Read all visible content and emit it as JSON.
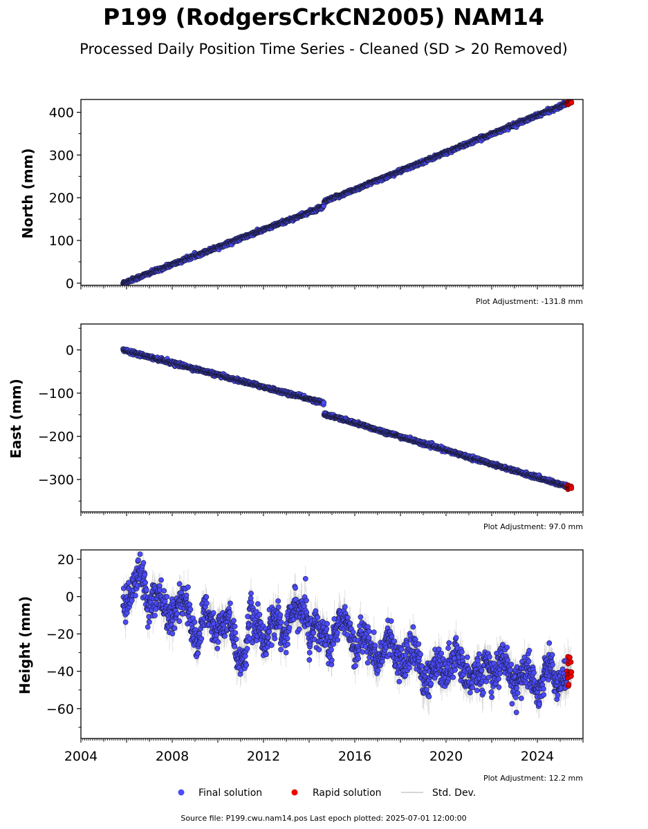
{
  "title": "P199 (RodgersCrkCN2005) NAM14",
  "subtitle": "Processed Daily Position Time Series - Cleaned (SD > 20 Removed)",
  "footer": "Source file: P199.cwu.nam14.pos  Last epoch plotted: 2025-07-01 12:00:00",
  "legend": {
    "items": [
      {
        "label": "Final solution",
        "color": "#4b4bff"
      },
      {
        "label": "Rapid solution",
        "color": "#ee0000"
      },
      {
        "label": "Std. Dev.",
        "color": "#c8c8c8"
      }
    ]
  },
  "colors": {
    "final": "#4b4bff",
    "rapid": "#ee0000",
    "stddev": "#b8b8b8",
    "edge": "#1a1a33"
  },
  "chart_data": [
    {
      "type": "scatter",
      "panel": "north",
      "ylabel": "North (mm)",
      "adjustment": "Plot Adjustment: -131.8 mm",
      "xlim": [
        2004,
        2026
      ],
      "ylim": [
        -5,
        430
      ],
      "yticks": [
        0,
        100,
        200,
        300,
        400
      ],
      "start": 2005.85,
      "break": 2014.65,
      "end": 2025.5,
      "rapid_start": 2025.3,
      "series": [
        {
          "segment": "before-break",
          "x": [
            2005.85,
            2014.6
          ],
          "y": [
            0,
            178
          ]
        },
        {
          "segment": "after-break",
          "x": [
            2014.65,
            2025.5
          ],
          "y": [
            190,
            425
          ]
        }
      ],
      "noise": 2.0,
      "sd": 1.5
    },
    {
      "type": "scatter",
      "panel": "east",
      "ylabel": "East (mm)",
      "adjustment": "Plot Adjustment: 97.0 mm",
      "xlim": [
        2004,
        2026
      ],
      "ylim": [
        -375,
        60
      ],
      "yticks": [
        0,
        -100,
        -200,
        -300
      ],
      "start": 2005.85,
      "break": 2014.65,
      "end": 2025.5,
      "rapid_start": 2025.3,
      "series": [
        {
          "segment": "before-break",
          "x": [
            2005.85,
            2014.6
          ],
          "y": [
            0,
            -122
          ]
        },
        {
          "segment": "after-break",
          "x": [
            2014.65,
            2025.5
          ],
          "y": [
            -148,
            -319
          ]
        }
      ],
      "noise": 2.0,
      "sd": 1.5
    },
    {
      "type": "scatter",
      "panel": "height",
      "ylabel": "Height (mm)",
      "adjustment": "Plot Adjustment: 12.2 mm",
      "xlim": [
        2004,
        2026
      ],
      "xticks": [
        2004,
        2008,
        2012,
        2016,
        2020,
        2024
      ],
      "ylim": [
        -76,
        25
      ],
      "yticks": [
        20,
        0,
        -20,
        -40,
        -60
      ],
      "start": 2005.85,
      "end": 2025.5,
      "rapid_start": 2025.3,
      "series": [
        {
          "segment": "trend",
          "x": [
            2005.85,
            2025.5
          ],
          "y": [
            2,
            -52
          ]
        }
      ],
      "seasonal_amplitude": 5,
      "noise": 4.5,
      "sd": 5.0
    }
  ]
}
